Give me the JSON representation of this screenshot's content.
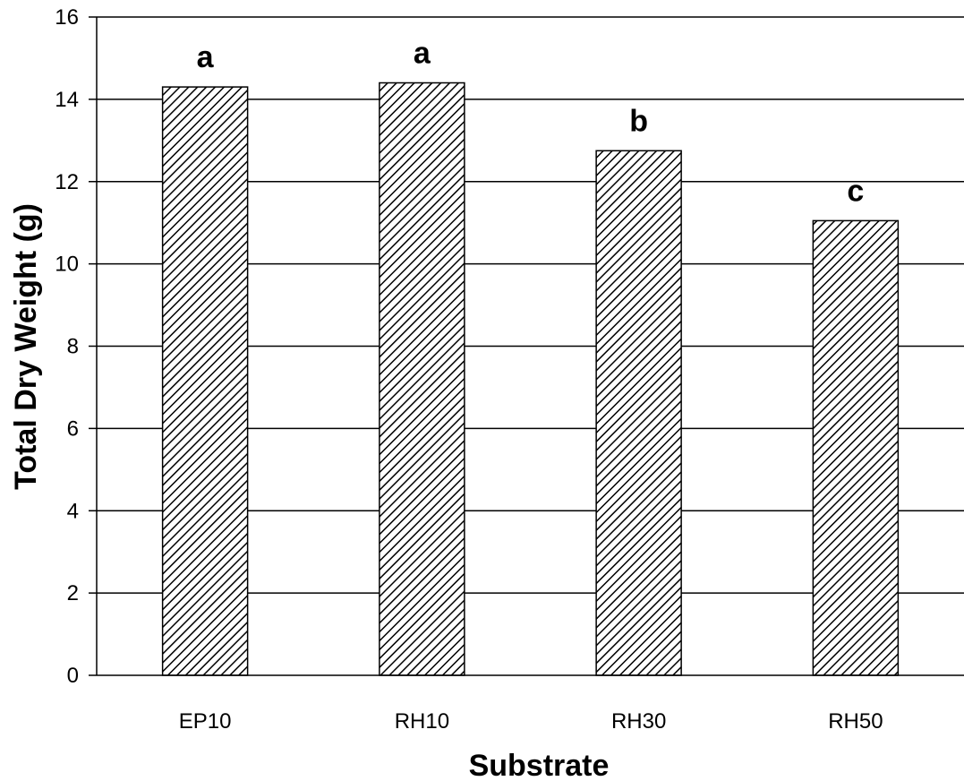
{
  "chart_data": {
    "type": "bar",
    "title": "",
    "xlabel": "Substrate",
    "ylabel": "Total Dry Weight (g)",
    "categories": [
      "EP10",
      "RH10",
      "RH30",
      "RH50"
    ],
    "values": [
      14.3,
      14.4,
      12.75,
      11.05
    ],
    "significance_labels": [
      "a",
      "a",
      "b",
      "c"
    ],
    "ylim": [
      0,
      16
    ],
    "yticks": [
      "0",
      "2",
      "4",
      "6",
      "8",
      "10",
      "12",
      "14",
      "16"
    ],
    "grid": true,
    "legend": "none",
    "bar_fill": "diagonal-hatch",
    "colors": {
      "bar_stroke": "#000000",
      "hatch": "#000000",
      "grid": "#000000"
    }
  }
}
